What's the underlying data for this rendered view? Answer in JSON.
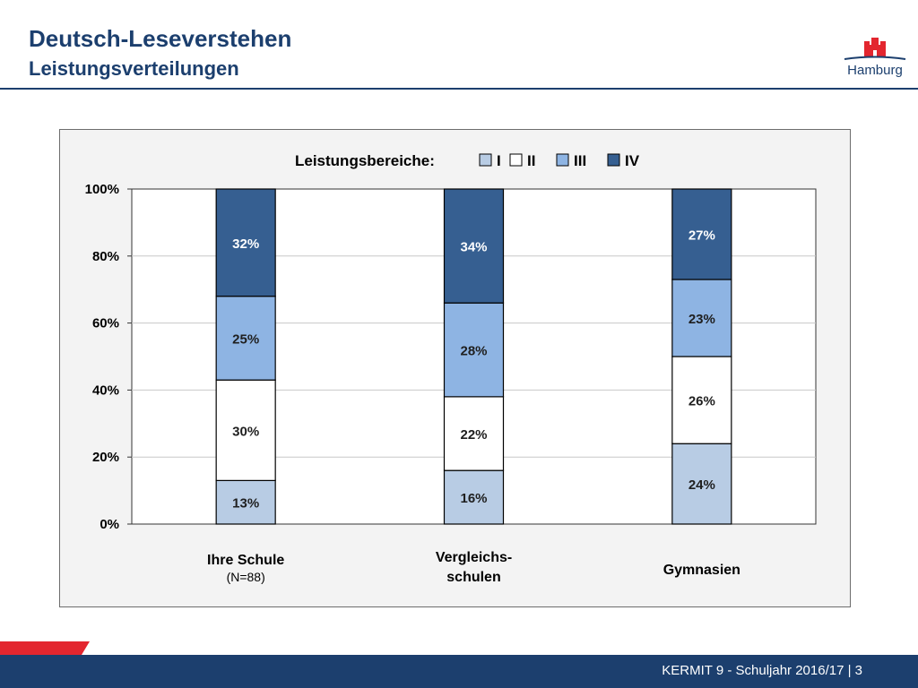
{
  "header": {
    "title": "Deutsch-Leseverstehen",
    "subtitle": "Leistungsverteilungen",
    "logo_text": "Hamburg"
  },
  "footer": {
    "text": "KERMIT 9 - Schuljahr 2016/17 | 3"
  },
  "colors": {
    "brand_navy": "#1c3f6e",
    "accent_red": "#e3262f",
    "series": [
      "#b8cce4",
      "#ffffff",
      "#8eb4e3",
      "#365f91"
    ]
  },
  "chart_data": {
    "type": "bar",
    "stacked": true,
    "legend_title": "Leistungsbereiche:",
    "legend_position": "top",
    "grid": true,
    "ylim": [
      0,
      100
    ],
    "yticks": [
      "0%",
      "20%",
      "40%",
      "60%",
      "80%",
      "100%"
    ],
    "categories": [
      {
        "label": "Ihre Schule",
        "sublabel": "(N=88)"
      },
      {
        "label": "Vergleichs-\nschulen",
        "sublabel": ""
      },
      {
        "label": "Gymnasien",
        "sublabel": ""
      }
    ],
    "series": [
      {
        "name": "I",
        "values": [
          13,
          16,
          24
        ]
      },
      {
        "name": "II",
        "values": [
          30,
          22,
          26
        ]
      },
      {
        "name": "III",
        "values": [
          25,
          28,
          23
        ]
      },
      {
        "name": "IV",
        "values": [
          32,
          34,
          27
        ]
      }
    ],
    "value_labels": [
      [
        "13%",
        "16%",
        "24%"
      ],
      [
        "30%",
        "22%",
        "26%"
      ],
      [
        "25%",
        "28%",
        "23%"
      ],
      [
        "32%",
        "34%",
        "27%"
      ]
    ]
  }
}
